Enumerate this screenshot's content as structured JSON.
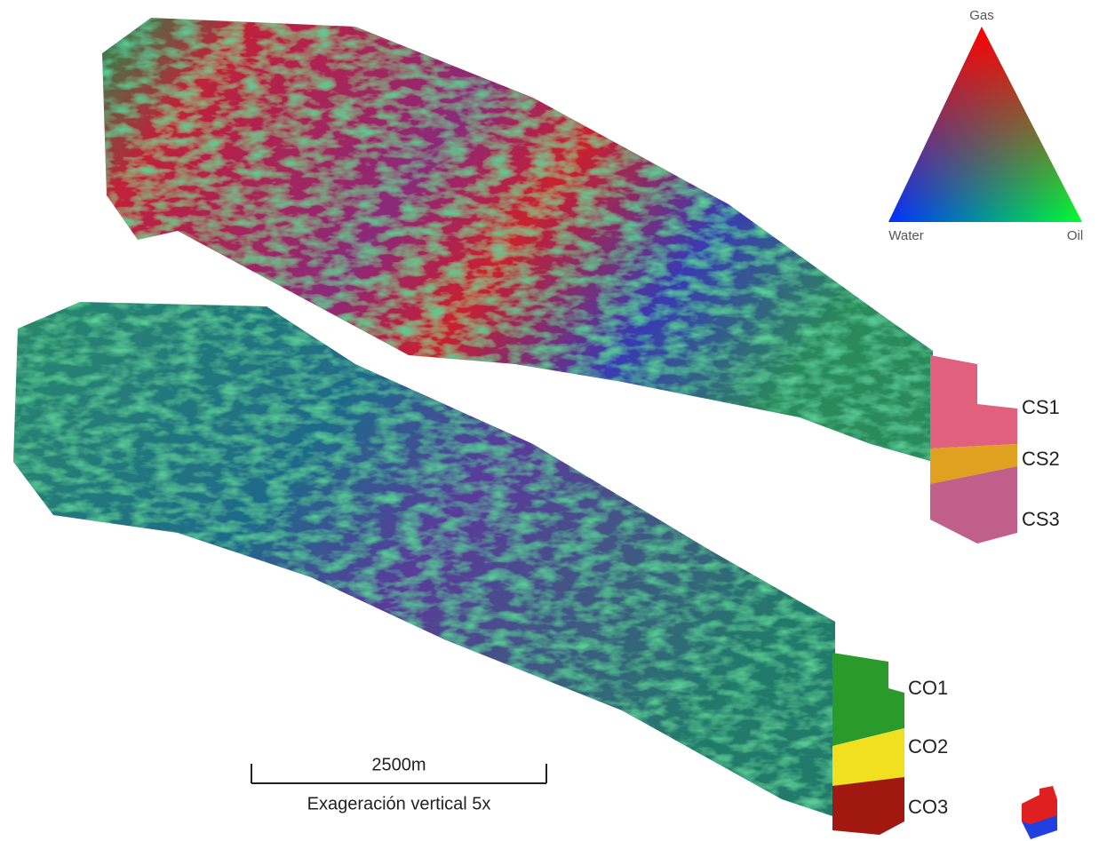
{
  "ternary": {
    "top": "Gas",
    "left": "Water",
    "right": "Oil"
  },
  "upper_model": {
    "zones": [
      "CS1",
      "CS2",
      "CS3"
    ]
  },
  "lower_model": {
    "zones": [
      "CO1",
      "CO2",
      "CO3"
    ]
  },
  "scale_bar": {
    "distance": "2500m",
    "note": "Exageración vertical 5x"
  }
}
